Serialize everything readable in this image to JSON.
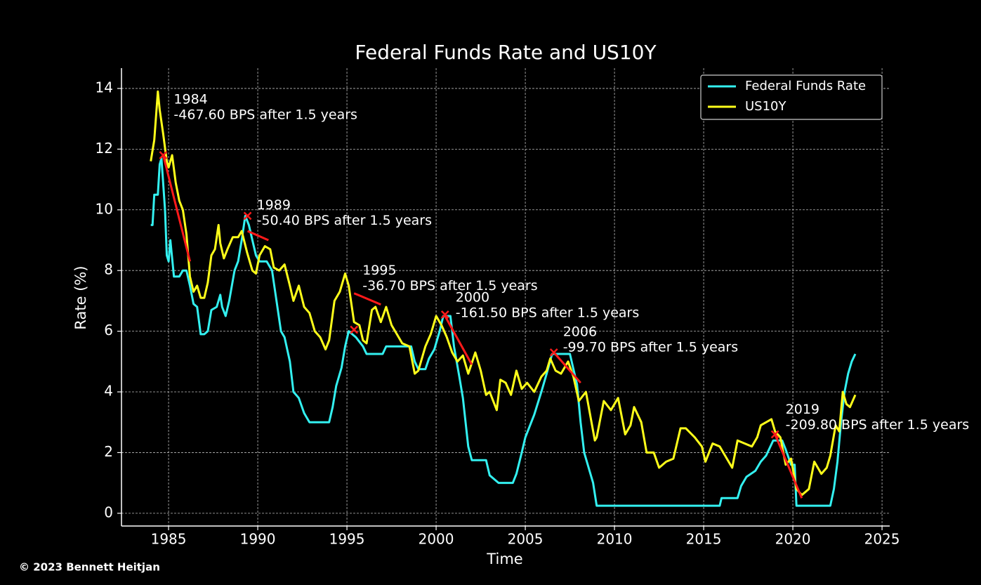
{
  "chart_data": {
    "type": "line",
    "title": "Federal Funds Rate and US10Y",
    "xlabel": "Time",
    "ylabel": "Rate (%)",
    "credit": "© 2023 Bennett Heitjan",
    "xlim": [
      1982.36,
      2025.43
    ],
    "ylim": [
      -0.42,
      14.67
    ],
    "xticks": [
      1985,
      1990,
      1995,
      2000,
      2005,
      2010,
      2015,
      2020,
      2025
    ],
    "yticks": [
      0,
      2,
      4,
      6,
      8,
      10,
      12,
      14
    ],
    "grid": true,
    "legend": "upper right",
    "series": [
      {
        "name": "Federal Funds Rate",
        "color": "#33f0f0",
        "x": [
          1984.0,
          1984.1,
          1984.2,
          1984.4,
          1984.5,
          1984.6,
          1984.8,
          1984.9,
          1985.0,
          1985.1,
          1985.3,
          1985.6,
          1985.8,
          1986.0,
          1986.2,
          1986.4,
          1986.6,
          1986.8,
          1987.0,
          1987.2,
          1987.4,
          1987.7,
          1987.9,
          1988.0,
          1988.2,
          1988.4,
          1988.7,
          1988.9,
          1989.1,
          1989.3,
          1989.5,
          1989.7,
          1989.9,
          1990.1,
          1990.5,
          1990.8,
          1991.0,
          1991.3,
          1991.5,
          1991.8,
          1992.0,
          1992.3,
          1992.6,
          1992.9,
          1993.5,
          1994.0,
          1994.2,
          1994.4,
          1994.7,
          1994.9,
          1995.1,
          1995.5,
          1995.9,
          1996.1,
          1997.0,
          1997.2,
          1998.6,
          1998.8,
          1999.0,
          1999.4,
          1999.6,
          1999.9,
          2000.2,
          2000.4,
          2000.8,
          2001.0,
          2001.3,
          2001.5,
          2001.8,
          2002.0,
          2002.8,
          2003.0,
          2003.5,
          2004.3,
          2004.5,
          2004.8,
          2005.0,
          2005.5,
          2005.9,
          2006.2,
          2006.5,
          2007.5,
          2007.7,
          2007.9,
          2008.1,
          2008.3,
          2008.8,
          2009.0,
          2015.9,
          2016.0,
          2016.9,
          2017.1,
          2017.4,
          2017.9,
          2018.2,
          2018.5,
          2018.9,
          2019.4,
          2019.6,
          2019.9,
          2020.1,
          2020.2,
          2022.1,
          2022.3,
          2022.5,
          2022.7,
          2022.9,
          2023.1,
          2023.3,
          2023.5
        ],
        "values": [
          9.5,
          9.5,
          10.5,
          10.5,
          11.5,
          11.7,
          10,
          8.5,
          8.3,
          9.0,
          7.8,
          7.8,
          8.0,
          8.0,
          7.5,
          6.9,
          6.8,
          5.9,
          5.9,
          6.0,
          6.7,
          6.8,
          7.2,
          6.8,
          6.5,
          7.0,
          8.0,
          8.3,
          9.0,
          9.8,
          9.5,
          9.0,
          8.5,
          8.3,
          8.3,
          8.0,
          7.2,
          6.0,
          5.8,
          5.0,
          4.0,
          3.8,
          3.3,
          3.0,
          3.0,
          3.0,
          3.5,
          4.2,
          4.8,
          5.5,
          6.0,
          5.8,
          5.5,
          5.25,
          5.25,
          5.5,
          5.5,
          5.0,
          4.75,
          4.75,
          5.1,
          5.4,
          6.0,
          6.5,
          6.5,
          5.5,
          4.5,
          3.8,
          2.2,
          1.75,
          1.75,
          1.25,
          1.0,
          1.0,
          1.3,
          2.0,
          2.5,
          3.25,
          4.0,
          4.6,
          5.25,
          5.25,
          4.75,
          4.25,
          3.0,
          2.0,
          1.0,
          0.25,
          0.25,
          0.5,
          0.5,
          0.9,
          1.2,
          1.4,
          1.7,
          1.9,
          2.4,
          2.4,
          2.1,
          1.6,
          1.6,
          0.25,
          0.25,
          0.8,
          1.7,
          3.0,
          4.0,
          4.6,
          5.0,
          5.25
        ]
      },
      {
        "name": "US10Y",
        "color": "#ffff1a",
        "x": [
          1984.0,
          1984.2,
          1984.4,
          1984.5,
          1984.7,
          1984.9,
          1985.0,
          1985.2,
          1985.4,
          1985.6,
          1985.8,
          1986.0,
          1986.2,
          1986.4,
          1986.6,
          1986.8,
          1987.0,
          1987.2,
          1987.4,
          1987.6,
          1987.8,
          1987.9,
          1988.1,
          1988.3,
          1988.6,
          1988.9,
          1989.1,
          1989.4,
          1989.7,
          1989.9,
          1990.1,
          1990.4,
          1990.7,
          1990.9,
          1991.2,
          1991.5,
          1991.8,
          1992.0,
          1992.3,
          1992.6,
          1992.9,
          1993.2,
          1993.5,
          1993.8,
          1994.0,
          1994.3,
          1994.6,
          1994.9,
          1995.1,
          1995.4,
          1995.7,
          1995.9,
          1996.1,
          1996.4,
          1996.6,
          1996.9,
          1997.2,
          1997.5,
          1997.8,
          1998.1,
          1998.5,
          1998.8,
          1999.0,
          1999.4,
          1999.7,
          2000.0,
          2000.3,
          2000.6,
          2000.9,
          2001.2,
          2001.5,
          2001.8,
          2002.2,
          2002.5,
          2002.8,
          2003.0,
          2003.4,
          2003.6,
          2003.9,
          2004.2,
          2004.5,
          2004.8,
          2005.1,
          2005.5,
          2005.9,
          2006.2,
          2006.4,
          2006.7,
          2007.0,
          2007.4,
          2007.7,
          2008.0,
          2008.4,
          2008.9,
          2009.0,
          2009.4,
          2009.8,
          2010.2,
          2010.6,
          2010.9,
          2011.1,
          2011.5,
          2011.8,
          2012.2,
          2012.5,
          2012.9,
          2013.3,
          2013.7,
          2014.0,
          2014.5,
          2014.9,
          2015.1,
          2015.5,
          2015.9,
          2016.3,
          2016.6,
          2016.9,
          2017.3,
          2017.7,
          2018.0,
          2018.2,
          2018.8,
          2019.0,
          2019.3,
          2019.6,
          2019.9,
          2020.2,
          2020.5,
          2020.9,
          2021.2,
          2021.6,
          2021.9,
          2022.1,
          2022.4,
          2022.6,
          2022.8,
          2023.0,
          2023.2,
          2023.5
        ],
        "values": [
          11.6,
          12.3,
          13.9,
          13.3,
          12.5,
          11.6,
          11.4,
          11.8,
          10.9,
          10.3,
          10.0,
          9.2,
          7.8,
          7.3,
          7.5,
          7.1,
          7.1,
          7.6,
          8.5,
          8.7,
          9.5,
          8.9,
          8.4,
          8.7,
          9.1,
          9.1,
          9.3,
          8.6,
          8.0,
          7.9,
          8.5,
          8.8,
          8.7,
          8.1,
          8.0,
          8.2,
          7.5,
          7.0,
          7.5,
          6.8,
          6.6,
          6.0,
          5.8,
          5.4,
          5.7,
          7.0,
          7.3,
          7.9,
          7.5,
          6.3,
          6.2,
          5.7,
          5.6,
          6.7,
          6.8,
          6.3,
          6.8,
          6.2,
          5.9,
          5.6,
          5.5,
          4.6,
          4.7,
          5.5,
          5.9,
          6.5,
          6.2,
          5.8,
          5.3,
          5.0,
          5.2,
          4.6,
          5.3,
          4.7,
          3.9,
          4.0,
          3.4,
          4.4,
          4.3,
          3.9,
          4.7,
          4.1,
          4.3,
          4.0,
          4.5,
          4.7,
          5.1,
          4.7,
          4.6,
          5.0,
          4.5,
          3.7,
          4.0,
          2.4,
          2.5,
          3.7,
          3.4,
          3.8,
          2.6,
          2.9,
          3.5,
          3.0,
          2.0,
          2.0,
          1.5,
          1.7,
          1.8,
          2.8,
          2.8,
          2.5,
          2.2,
          1.7,
          2.3,
          2.2,
          1.8,
          1.5,
          2.4,
          2.3,
          2.2,
          2.5,
          2.9,
          3.1,
          2.7,
          2.5,
          1.6,
          1.8,
          0.8,
          0.6,
          0.8,
          1.7,
          1.3,
          1.5,
          1.9,
          2.9,
          2.7,
          4.0,
          3.6,
          3.5,
          3.9
        ]
      }
    ],
    "annotations": [
      {
        "label": "1984",
        "text": "-467.60 BPS after 1.5 years",
        "marker": [
          1984.7,
          11.8
        ],
        "line": [
          [
            1984.7,
            11.8
          ],
          [
            1986.2,
            8.3
          ]
        ]
      },
      {
        "label": "1989",
        "text": "-50.40 BPS after 1.5 years",
        "marker": [
          1989.43,
          9.8
        ],
        "line": [
          [
            1989.43,
            9.3
          ],
          [
            1990.6,
            9.0
          ]
        ]
      },
      {
        "label": "1995",
        "text": "-36.70 BPS after 1.5 years",
        "marker": [
          1995.4,
          6.05
        ],
        "line": [
          [
            1995.4,
            7.25
          ],
          [
            1996.9,
            6.88
          ]
        ]
      },
      {
        "label": "2000",
        "text": "-161.50 BPS after 1.5 years",
        "marker": [
          2000.5,
          6.55
        ],
        "line": [
          [
            2000.5,
            6.5
          ],
          [
            2002.0,
            4.9
          ]
        ]
      },
      {
        "label": "2006",
        "text": "-99.70 BPS after 1.5 years",
        "marker": [
          2006.6,
          5.3
        ],
        "line": [
          [
            2006.6,
            5.3
          ],
          [
            2008.1,
            4.3
          ]
        ]
      },
      {
        "label": "2019",
        "text": "-209.80 BPS after 1.5 years",
        "marker": [
          2019.0,
          2.6
        ],
        "line": [
          [
            2019.0,
            2.6
          ],
          [
            2020.5,
            0.5
          ]
        ]
      }
    ]
  }
}
